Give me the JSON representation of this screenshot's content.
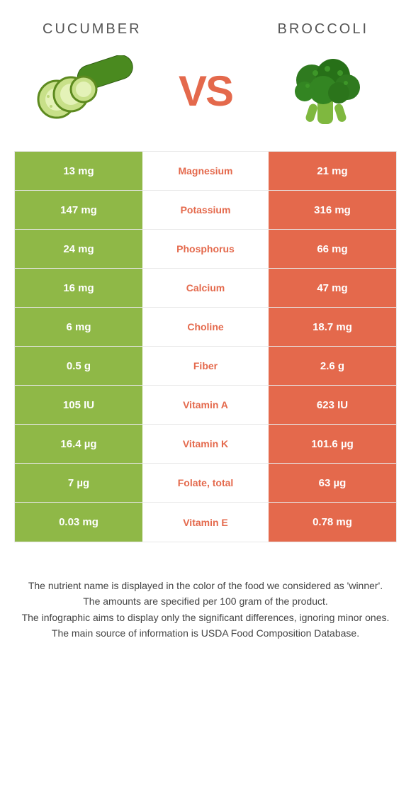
{
  "left_food": {
    "name": "CUCUMBER"
  },
  "right_food": {
    "name": "BROCCOLI"
  },
  "vs_label": "VS",
  "colors": {
    "left": "#8fb847",
    "right": "#e4694c",
    "winner_text": "#e4694c",
    "row_border": "#e8e8e8"
  },
  "rows": [
    {
      "left": "13 mg",
      "label": "Magnesium",
      "right": "21 mg",
      "winner": "right"
    },
    {
      "left": "147 mg",
      "label": "Potassium",
      "right": "316 mg",
      "winner": "right"
    },
    {
      "left": "24 mg",
      "label": "Phosphorus",
      "right": "66 mg",
      "winner": "right"
    },
    {
      "left": "16 mg",
      "label": "Calcium",
      "right": "47 mg",
      "winner": "right"
    },
    {
      "left": "6 mg",
      "label": "Choline",
      "right": "18.7 mg",
      "winner": "right"
    },
    {
      "left": "0.5 g",
      "label": "Fiber",
      "right": "2.6 g",
      "winner": "right"
    },
    {
      "left": "105 IU",
      "label": "Vitamin A",
      "right": "623 IU",
      "winner": "right"
    },
    {
      "left": "16.4 µg",
      "label": "Vitamin K",
      "right": "101.6 µg",
      "winner": "right"
    },
    {
      "left": "7 µg",
      "label": "Folate, total",
      "right": "63 µg",
      "winner": "right"
    },
    {
      "left": "0.03 mg",
      "label": "Vitamin E",
      "right": "0.78 mg",
      "winner": "right"
    }
  ],
  "footer_lines": [
    "The nutrient name is displayed in the color of the food we considered as 'winner'.",
    "The amounts are specified per 100 gram of the product.",
    "The infographic aims to display only the significant differences, ignoring minor ones.",
    "The main source of information is USDA Food Composition Database."
  ]
}
